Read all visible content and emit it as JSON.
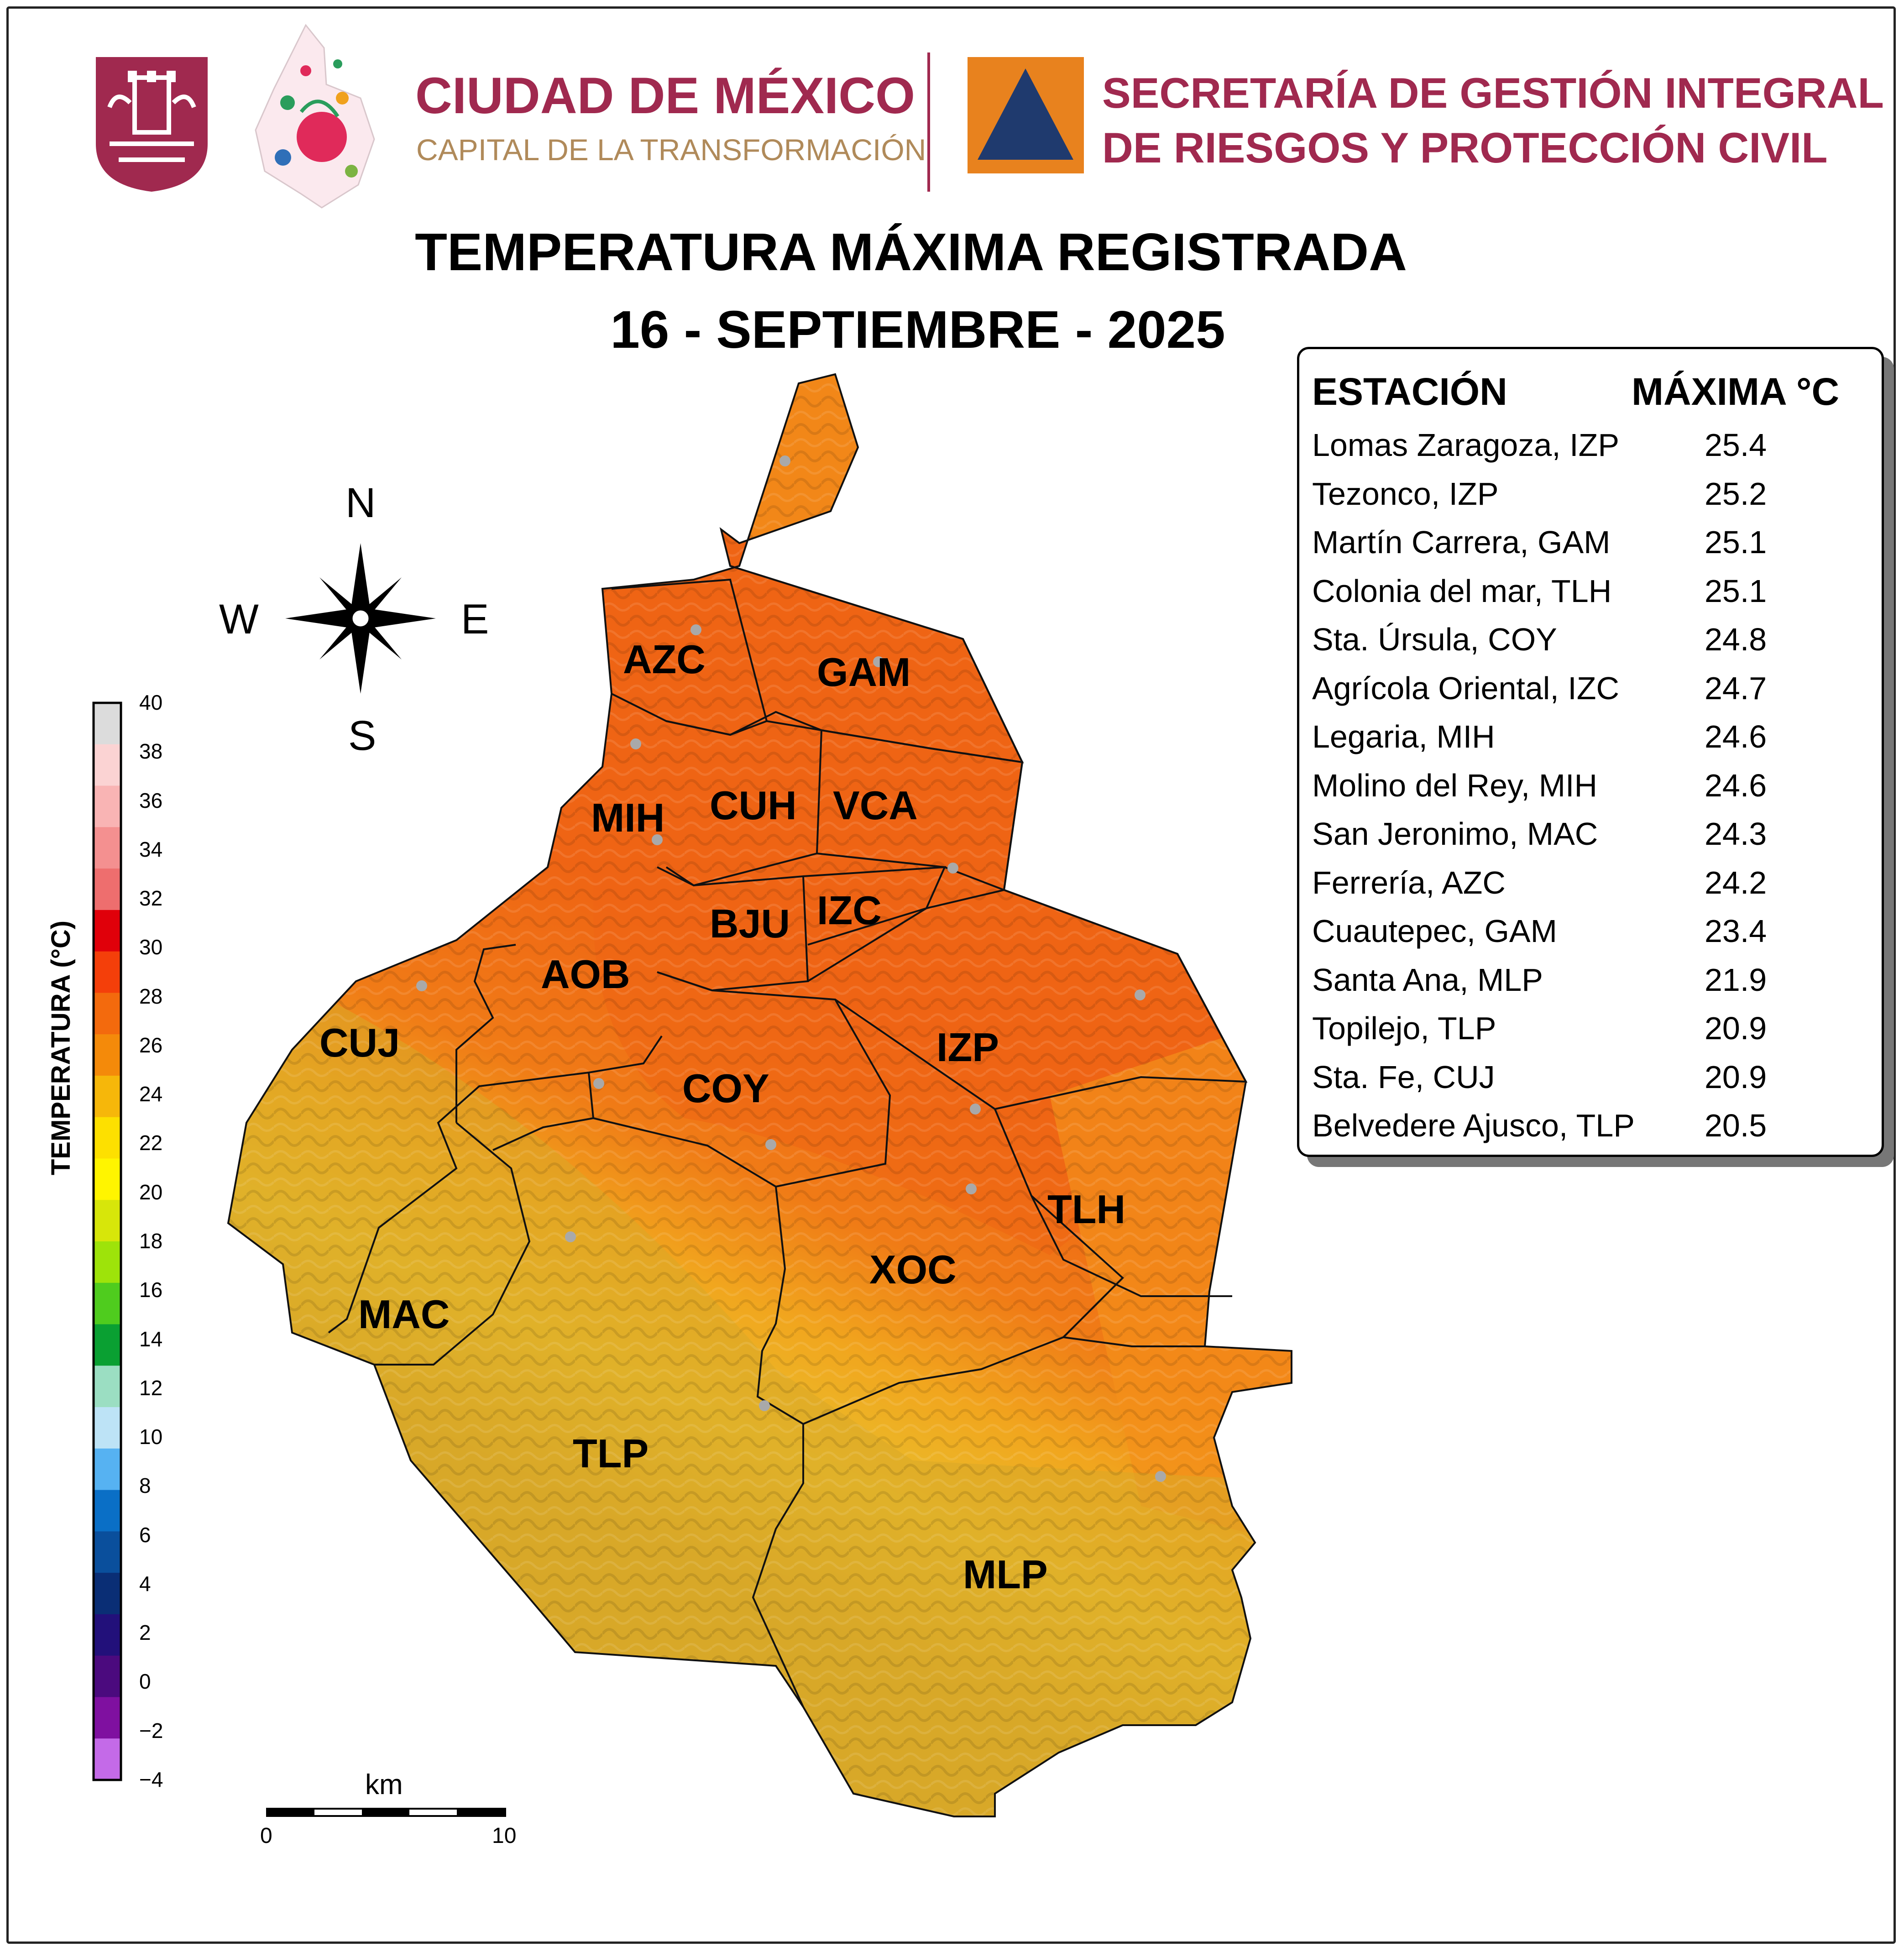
{
  "header": {
    "city_title": "CIUDAD DE MÉXICO",
    "city_subtitle": "CAPITAL DE LA TRANSFORMACIÓN",
    "agency_line1": "SECRETARÍA DE GESTIÓN INTEGRAL",
    "agency_line2": "DE RIESGOS Y PROTECCIÓN CIVIL",
    "brand_color": "#a0294f",
    "subtitle_color": "#b08a5a",
    "agency_icon_colors": {
      "square": "#e8821e",
      "triangle": "#1f3a6e"
    }
  },
  "title": {
    "line1": "TEMPERATURA MÁXIMA REGISTRADA",
    "line2": "16 - SEPTIEMBRE - 2025"
  },
  "compass": {
    "north": "N",
    "south": "S",
    "east": "E",
    "west": "W"
  },
  "station_table": {
    "header_station": "ESTACIÓN",
    "header_max": "MÁXIMA °C",
    "rows": [
      {
        "station": "Lomas Zaragoza, IZP",
        "max": "25.4"
      },
      {
        "station": "Tezonco, IZP",
        "max": "25.2"
      },
      {
        "station": "Martín Carrera, GAM",
        "max": "25.1"
      },
      {
        "station": "Colonia del mar, TLH",
        "max": "25.1"
      },
      {
        "station": "Sta. Úrsula, COY",
        "max": "24.8"
      },
      {
        "station": "Agrícola Oriental, IZC",
        "max": "24.7"
      },
      {
        "station": "Legaria, MIH",
        "max": "24.6"
      },
      {
        "station": "Molino del Rey, MIH",
        "max": "24.6"
      },
      {
        "station": "San Jeronimo, MAC",
        "max": "24.3"
      },
      {
        "station": "Ferrería, AZC",
        "max": "24.2"
      },
      {
        "station": "Cuautepec, GAM",
        "max": "23.4"
      },
      {
        "station": "Santa Ana, MLP",
        "max": "21.9"
      },
      {
        "station": "Topilejo, TLP",
        "max": "20.9"
      },
      {
        "station": "Sta. Fe, CUJ",
        "max": "20.9"
      },
      {
        "station": "Belvedere Ajusco, TLP",
        "max": "20.5"
      }
    ]
  },
  "colorbar": {
    "title": "TEMPERATURA (°C)",
    "ticks": [
      "40",
      "38",
      "36",
      "34",
      "32",
      "30",
      "28",
      "26",
      "24",
      "22",
      "20",
      "18",
      "16",
      "14",
      "12",
      "10",
      "8",
      "6",
      "4",
      "2",
      "0",
      "−2",
      "−4"
    ],
    "colors": [
      "#dcdcdc",
      "#fbd3d3",
      "#f9b4b4",
      "#f49090",
      "#ee6e6e",
      "#e0000a",
      "#f43f0a",
      "#f36a0d",
      "#f48a0a",
      "#f6b70a",
      "#fde000",
      "#fff500",
      "#d7e60a",
      "#9ee30a",
      "#4fcc1e",
      "#0aa032",
      "#9bdec2",
      "#bde3f6",
      "#56b2f2",
      "#0a6fc6",
      "#0a4f9c",
      "#0a2e75",
      "#22107a",
      "#4b0a7e",
      "#7f10a0",
      "#c46ae8"
    ]
  },
  "districts": [
    "GAM",
    "AZC",
    "MIH",
    "CUH",
    "VCA",
    "BJU",
    "IZC",
    "AOB",
    "CUJ",
    "COY",
    "IZP",
    "TLH",
    "MAC",
    "XOC",
    "TLP",
    "MLP"
  ],
  "scale_bar": {
    "unit": "km",
    "start": "0",
    "end": "10"
  },
  "map_colors": {
    "hot": "#ef6414",
    "warm": "#f39019",
    "mild": "#e6b82b",
    "cool": "#d8a828",
    "station_marker": "#a9a9a9"
  }
}
